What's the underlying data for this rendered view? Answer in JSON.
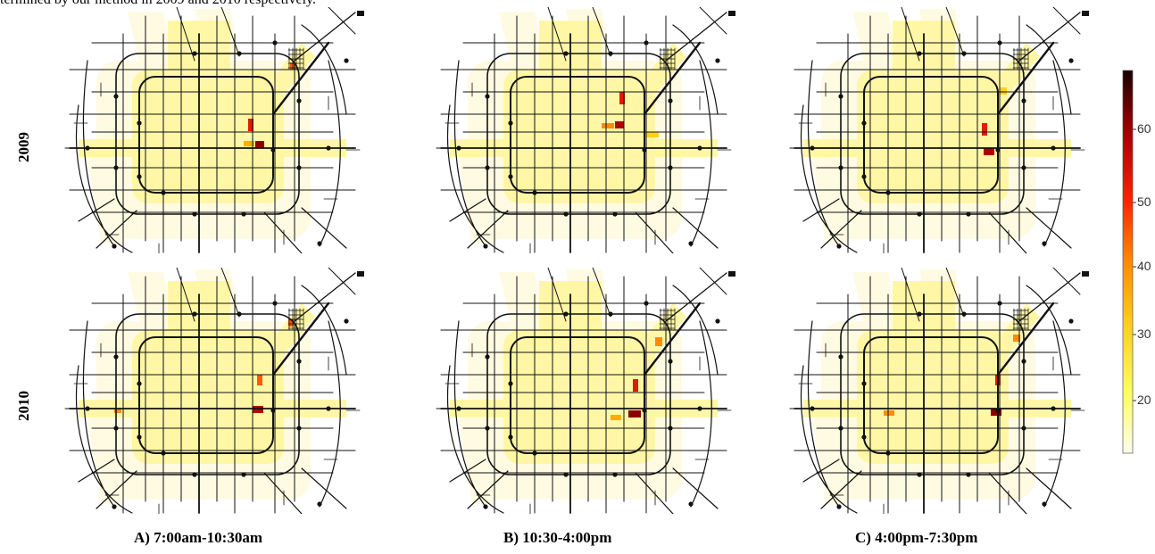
{
  "caption_fragment": "termined by our method in 2009 and 2010 respectively.",
  "rows": [
    "2009",
    "2010"
  ],
  "columns": [
    "A)  7:00am-10:30am",
    "B) 10:30-4:00pm",
    "C) 4:00pm-7:30pm"
  ],
  "colorbar": {
    "ticks": [
      "60",
      "50",
      "40",
      "30",
      "20"
    ],
    "colors": [
      "#fffef0",
      "#ffff66",
      "#ffd11a",
      "#ff8c00",
      "#ff2200",
      "#b30000",
      "#1a0000"
    ]
  },
  "colors": {
    "road": "#111111",
    "base_zone": "#fffbe3",
    "core_zone": "#fff7a6"
  }
}
